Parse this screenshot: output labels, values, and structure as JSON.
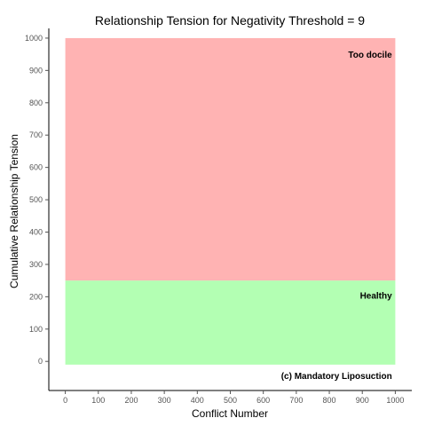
{
  "chart_data": {
    "type": "area",
    "title": "Relationship Tension for Negativity Threshold = 9",
    "xlabel": "Conflict Number",
    "ylabel": "Cumulative Relationship Tension",
    "xlim": [
      -50,
      1050
    ],
    "ylim": [
      -90,
      1030
    ],
    "x_ticks": [
      0,
      100,
      200,
      300,
      400,
      500,
      600,
      700,
      800,
      900,
      1000
    ],
    "y_ticks": [
      0,
      100,
      200,
      300,
      400,
      500,
      600,
      700,
      800,
      900,
      1000
    ],
    "grid": false,
    "regions": [
      {
        "name": "Too docile",
        "x": [
          0,
          1000
        ],
        "y": [
          250,
          1000
        ],
        "color": "#ffb3b3"
      },
      {
        "name": "Healthy",
        "x": [
          0,
          1000
        ],
        "y": [
          -10,
          250
        ],
        "color": "#b3ffb3"
      }
    ],
    "annotations": [
      {
        "text": "Too docile",
        "x": 990,
        "y": 950
      },
      {
        "text": "Healthy",
        "x": 990,
        "y": 205
      }
    ],
    "credit": "(c) Mandatory Liposuction"
  }
}
